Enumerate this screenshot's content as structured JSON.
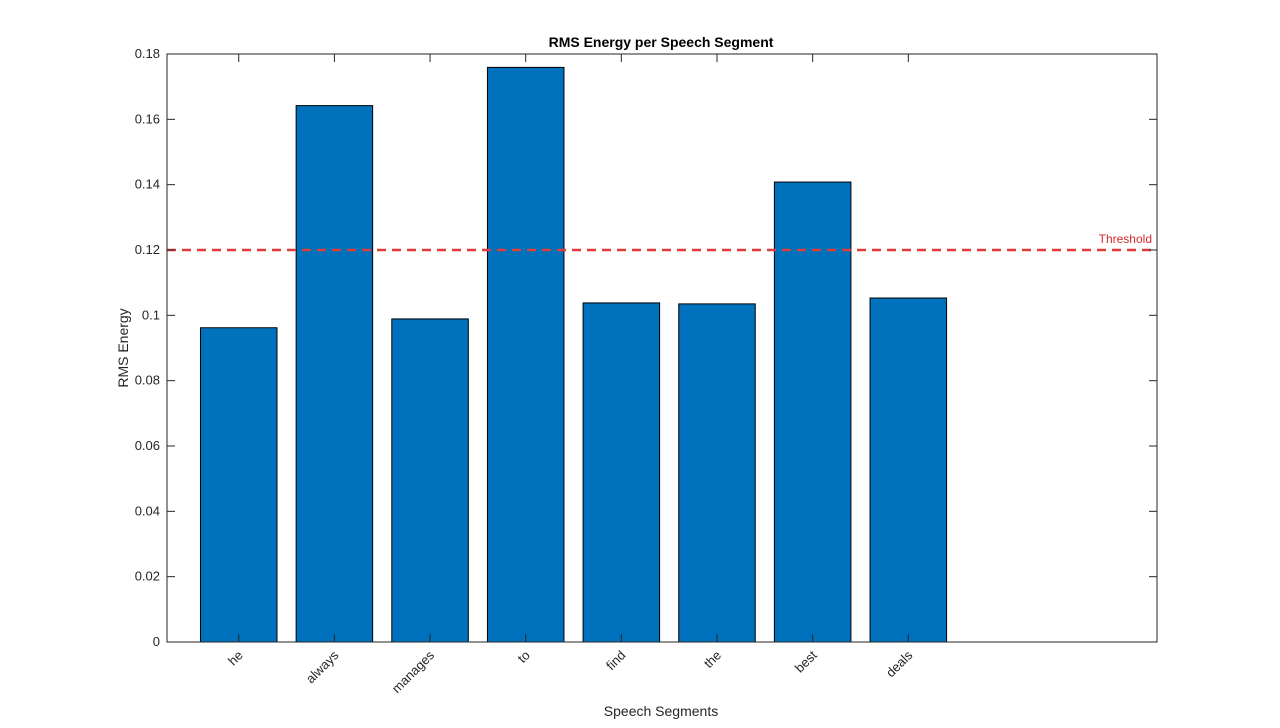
{
  "chart_data": {
    "type": "bar",
    "title": "RMS Energy per Speech Segment",
    "xlabel": "Speech Segments",
    "ylabel": "RMS Energy",
    "categories": [
      "he",
      "always",
      "manages",
      "to",
      "find",
      "the",
      "best",
      "deals"
    ],
    "values": [
      0.0962,
      0.1642,
      0.0989,
      0.1759,
      0.1038,
      0.1035,
      0.1408,
      0.1053
    ],
    "ylim": [
      0,
      0.18
    ],
    "yticks": [
      0,
      0.02,
      0.04,
      0.06,
      0.08,
      0.1,
      0.12,
      0.14,
      0.16,
      0.18
    ],
    "ytick_labels": [
      "0",
      "0.02",
      "0.04",
      "0.06",
      "0.08",
      "0.1",
      "0.12",
      "0.14",
      "0.16",
      "0.18"
    ],
    "xlim": [
      0.25,
      10.6
    ],
    "threshold": {
      "value": 0.12,
      "label": "Threshold",
      "style": "dashed",
      "color": "#e03c3c"
    },
    "bar_color": "#0072bd",
    "grid": false,
    "legend": "none"
  }
}
